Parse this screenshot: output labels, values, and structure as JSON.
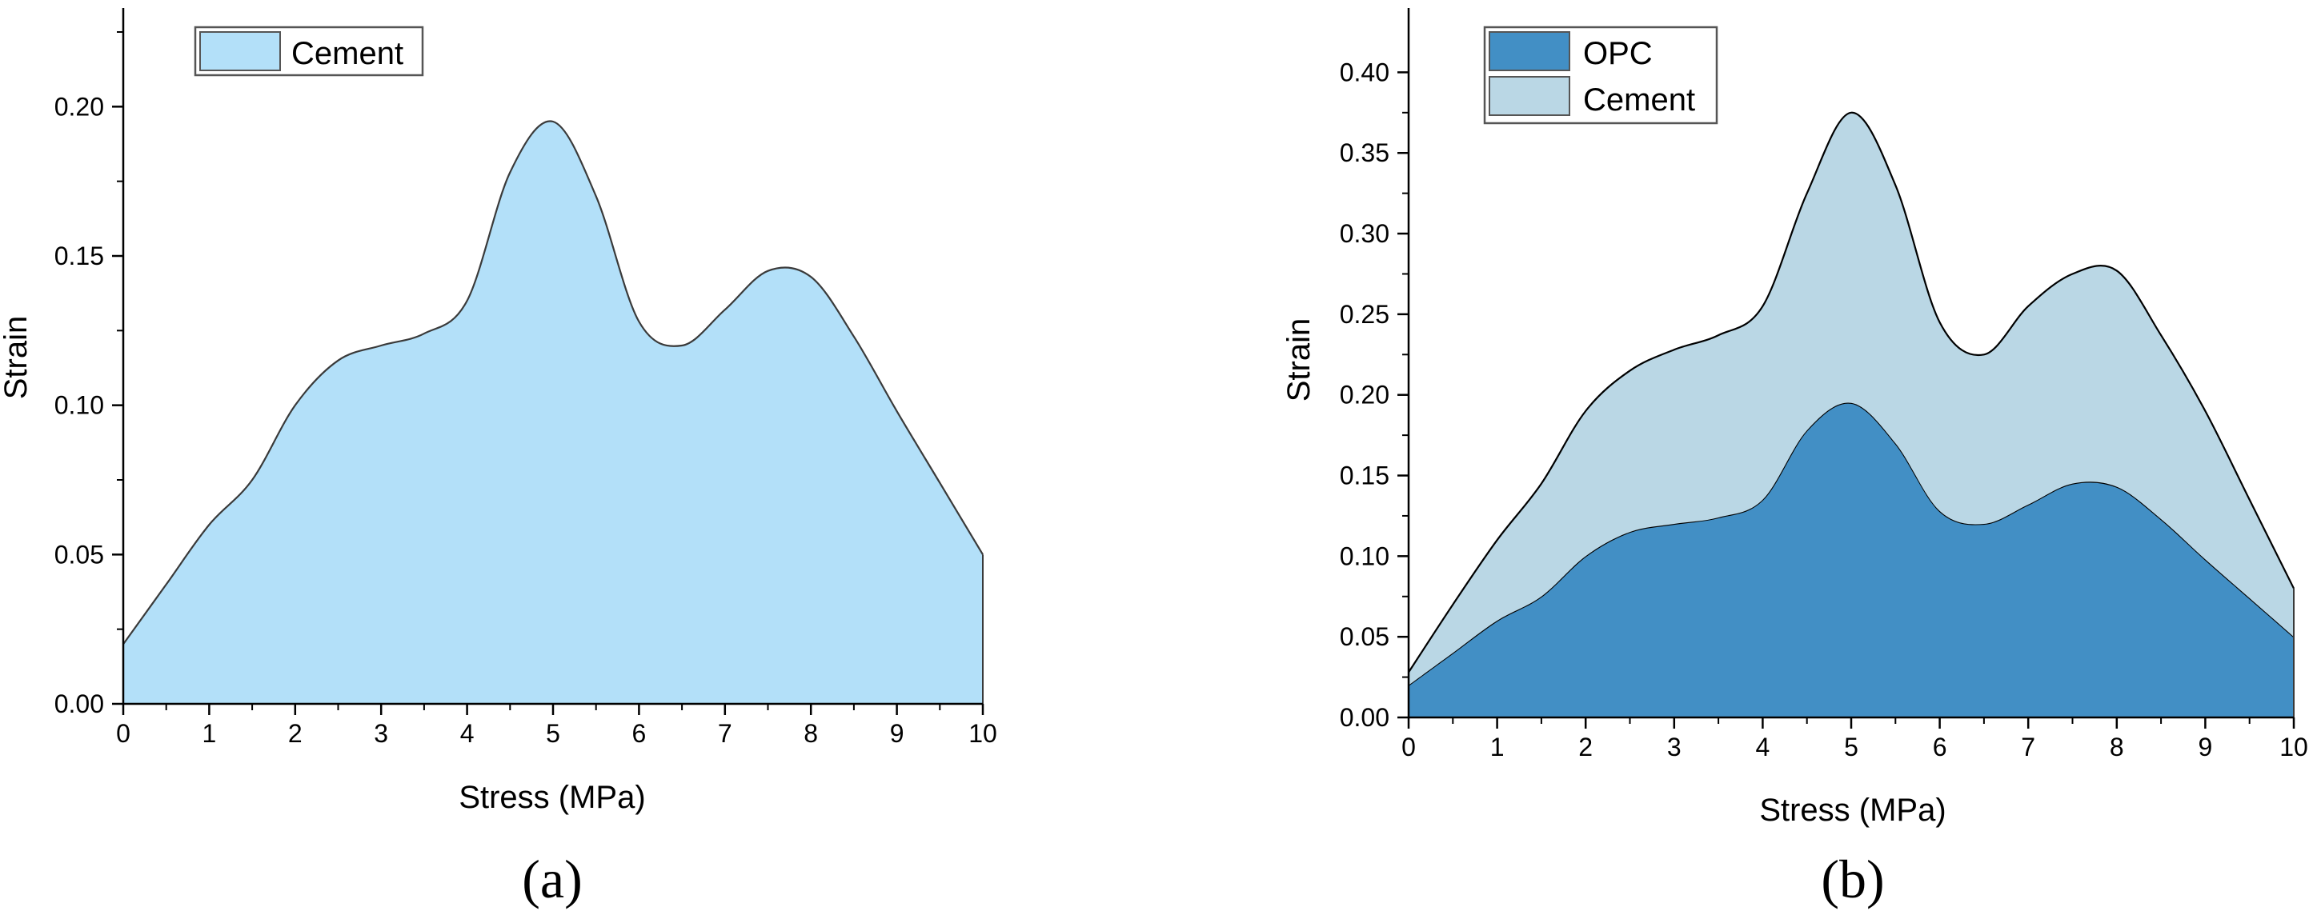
{
  "chart_data": [
    {
      "type": "area",
      "panel_label": "(a)",
      "xlabel": "Stress (MPa)",
      "ylabel": "Strain",
      "xlim": [
        0,
        10
      ],
      "ylim": [
        0,
        0.225
      ],
      "xticks": [
        0,
        1,
        2,
        3,
        4,
        5,
        6,
        7,
        8,
        9,
        10
      ],
      "yticks": [
        0.0,
        0.05,
        0.1,
        0.15,
        0.2
      ],
      "xtick_labels": [
        "0",
        "1",
        "2",
        "3",
        "4",
        "5",
        "6",
        "7",
        "8",
        "9",
        "10"
      ],
      "ytick_labels": [
        "0.00",
        "0.05",
        "0.10",
        "0.15",
        "0.20"
      ],
      "legend_position": "top-left",
      "series": [
        {
          "name": "Cement",
          "color": "#B3E0F9",
          "x": [
            0,
            0.5,
            1,
            1.5,
            2,
            2.5,
            3,
            3.5,
            4,
            4.5,
            5,
            5.5,
            6,
            6.5,
            7,
            7.5,
            8,
            8.5,
            9,
            9.5,
            10
          ],
          "y": [
            0.02,
            0.04,
            0.06,
            0.075,
            0.1,
            0.115,
            0.12,
            0.124,
            0.135,
            0.178,
            0.195,
            0.17,
            0.128,
            0.12,
            0.132,
            0.145,
            0.143,
            0.123,
            0.098,
            0.074,
            0.05
          ]
        }
      ]
    },
    {
      "type": "area",
      "stacked": true,
      "panel_label": "(b)",
      "xlabel": "Stress (MPa)",
      "ylabel": "Strain",
      "xlim": [
        0,
        10
      ],
      "ylim": [
        0,
        0.425
      ],
      "xticks": [
        0,
        1,
        2,
        3,
        4,
        5,
        6,
        7,
        8,
        9,
        10
      ],
      "yticks": [
        0.0,
        0.05,
        0.1,
        0.15,
        0.2,
        0.25,
        0.3,
        0.35,
        0.4
      ],
      "xtick_labels": [
        "0",
        "1",
        "2",
        "3",
        "4",
        "5",
        "6",
        "7",
        "8",
        "9",
        "10"
      ],
      "ytick_labels": [
        "0.00",
        "0.05",
        "0.10",
        "0.15",
        "0.20",
        "0.25",
        "0.30",
        "0.35",
        "0.40"
      ],
      "legend_position": "top-left",
      "series": [
        {
          "name": "OPC",
          "color": "#428FC5",
          "x": [
            0,
            0.5,
            1,
            1.5,
            2,
            2.5,
            3,
            3.5,
            4,
            4.5,
            5,
            5.5,
            6,
            6.5,
            7,
            7.5,
            8,
            8.5,
            9,
            9.5,
            10
          ],
          "y": [
            0.02,
            0.04,
            0.06,
            0.075,
            0.1,
            0.115,
            0.12,
            0.124,
            0.135,
            0.178,
            0.195,
            0.17,
            0.128,
            0.12,
            0.132,
            0.145,
            0.143,
            0.123,
            0.098,
            0.074,
            0.05
          ]
        },
        {
          "name": "Cement",
          "color": "#BAD7E5",
          "x": [
            0,
            0.5,
            1,
            1.5,
            2,
            2.5,
            3,
            3.5,
            4,
            4.5,
            5,
            5.5,
            6,
            6.5,
            7,
            7.5,
            8,
            8.5,
            9,
            9.5,
            10
          ],
          "y_cumulative": [
            0.028,
            0.07,
            0.11,
            0.145,
            0.19,
            0.215,
            0.228,
            0.237,
            0.255,
            0.325,
            0.375,
            0.33,
            0.245,
            0.225,
            0.255,
            0.275,
            0.277,
            0.237,
            0.19,
            0.135,
            0.08
          ]
        }
      ]
    }
  ]
}
